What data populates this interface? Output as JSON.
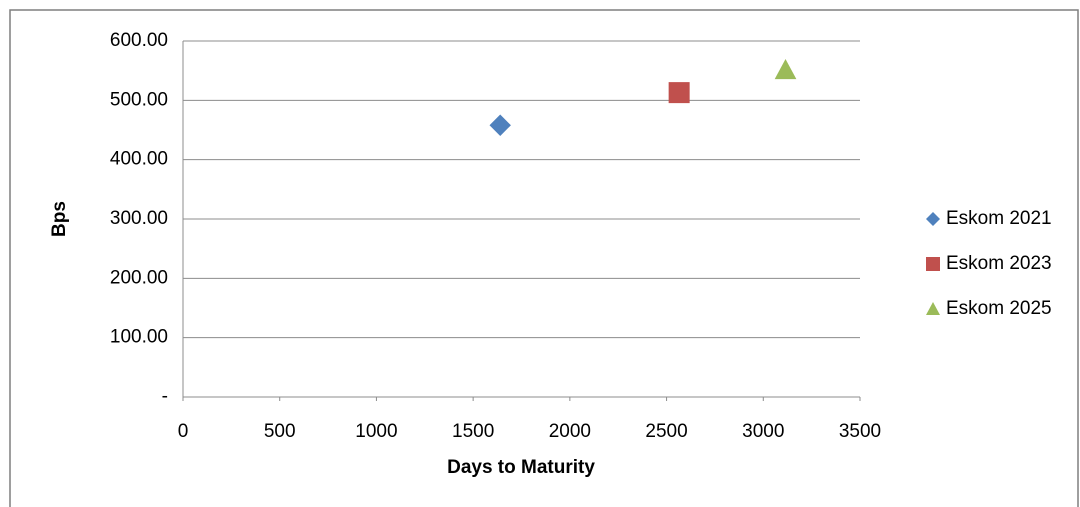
{
  "chart_data": {
    "type": "scatter",
    "x_label": "Days to Maturity",
    "y_label": "Bps",
    "xlim": [
      0,
      3500
    ],
    "xticks": [
      0,
      500,
      1000,
      1500,
      2000,
      2500,
      3000,
      3500
    ],
    "ylim": [
      0,
      600
    ],
    "yticks": [
      {
        "value": 0,
        "label": "-"
      },
      {
        "value": 100,
        "label": "100.00"
      },
      {
        "value": 200,
        "label": "200.00"
      },
      {
        "value": 300,
        "label": "300.00"
      },
      {
        "value": 400,
        "label": "400.00"
      },
      {
        "value": 500,
        "label": "500.00"
      },
      {
        "value": 600,
        "label": "600.00"
      }
    ],
    "grid": true,
    "legend": "right",
    "series": [
      {
        "name": "Eskom 2021",
        "color": "#4f81bd",
        "marker": "diamond",
        "x": [
          1640
        ],
        "values": [
          458
        ]
      },
      {
        "name": "Eskom 2023",
        "color": "#c0504d",
        "marker": "square",
        "x": [
          2565
        ],
        "values": [
          513
        ]
      },
      {
        "name": "Eskom 2025",
        "color": "#9bbb59",
        "marker": "triangle",
        "x": [
          3115
        ],
        "values": [
          551
        ]
      }
    ]
  }
}
